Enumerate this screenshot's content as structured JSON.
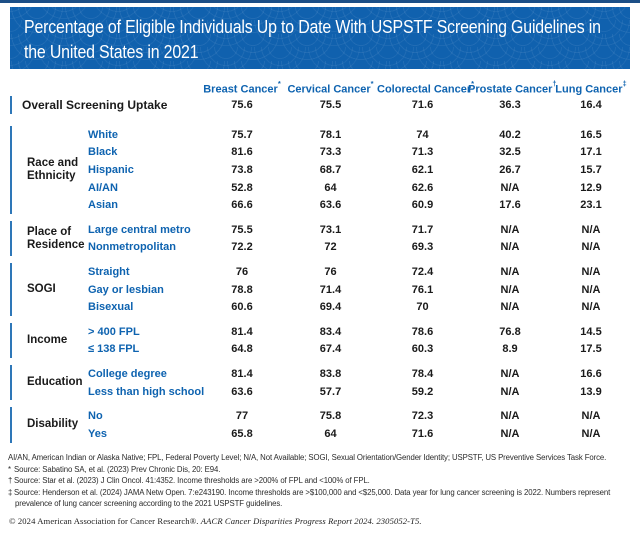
{
  "colors": {
    "banner_blue": "#1061AE",
    "accent_blue": "#0E63B0",
    "group_bar_blue": "#2E77B8",
    "top_rule_blue": "#1C4F87",
    "text_black": "#1A1A1A",
    "banner_text": "#FFFFFF"
  },
  "banner": {
    "lines": [
      "Percentage of Eligible Individuals Up to Date With USPSTF Screening Guidelines in",
      "the United States in 2021"
    ]
  },
  "chart_data": {
    "type": "table",
    "title": "Percentage of Eligible Individuals Up to Date With USPSTF Screening Guidelines in the United States in 2021",
    "unit": "percent up to date",
    "columns": [
      {
        "label": "Breast Cancer",
        "mark": "*"
      },
      {
        "label": "Cervical Cancer",
        "mark": "*"
      },
      {
        "label": "Colorectal Cancer",
        "mark": "*"
      },
      {
        "label": "Prostate Cancer",
        "mark": "†"
      },
      {
        "label": "Lung Cancer",
        "mark": "‡"
      }
    ],
    "overall": {
      "label": "Overall Screening Uptake",
      "values": [
        75.6,
        75.5,
        71.6,
        36.3,
        16.4
      ]
    },
    "groups": [
      {
        "label": "Race and Ethnicity",
        "rows": [
          {
            "label": "White",
            "values": [
              75.7,
              78.1,
              74,
              40.2,
              16.5
            ]
          },
          {
            "label": "Black",
            "values": [
              81.6,
              73.3,
              71.3,
              32.5,
              17.1
            ]
          },
          {
            "label": "Hispanic",
            "values": [
              73.8,
              68.7,
              62.1,
              26.7,
              15.7
            ]
          },
          {
            "label": "AI/AN",
            "values": [
              52.8,
              64,
              62.6,
              "N/A",
              12.9
            ]
          },
          {
            "label": "Asian",
            "values": [
              66.6,
              63.6,
              60.9,
              17.6,
              23.1
            ]
          }
        ]
      },
      {
        "label": "Place of Residence",
        "rows": [
          {
            "label": "Large central metro",
            "values": [
              75.5,
              73.1,
              71.7,
              "N/A",
              "N/A"
            ]
          },
          {
            "label": "Nonmetropolitan",
            "values": [
              72.2,
              72,
              69.3,
              "N/A",
              "N/A"
            ]
          }
        ]
      },
      {
        "label": "SOGI",
        "rows": [
          {
            "label": "Straight",
            "values": [
              76,
              76,
              72.4,
              "N/A",
              "N/A"
            ]
          },
          {
            "label": "Gay or lesbian",
            "values": [
              78.8,
              71.4,
              76.1,
              "N/A",
              "N/A"
            ]
          },
          {
            "label": "Bisexual",
            "values": [
              60.6,
              69.4,
              70,
              "N/A",
              "N/A"
            ]
          }
        ]
      },
      {
        "label": "Income",
        "rows": [
          {
            "label": "> 400 FPL",
            "values": [
              81.4,
              83.4,
              78.6,
              76.8,
              14.5
            ]
          },
          {
            "label": "≤ 138 FPL",
            "values": [
              64.8,
              67.4,
              60.3,
              8.9,
              17.5
            ]
          }
        ]
      },
      {
        "label": "Education",
        "rows": [
          {
            "label": "College degree",
            "values": [
              81.4,
              83.8,
              78.4,
              "N/A",
              16.6
            ]
          },
          {
            "label": "Less than high school",
            "values": [
              63.6,
              57.7,
              59.2,
              "N/A",
              13.9
            ]
          }
        ]
      },
      {
        "label": "Disability",
        "rows": [
          {
            "label": "No",
            "values": [
              77,
              75.8,
              72.3,
              "N/A",
              "N/A"
            ]
          },
          {
            "label": "Yes",
            "values": [
              65.8,
              64,
              71.6,
              "N/A",
              "N/A"
            ]
          }
        ]
      }
    ]
  },
  "footnotes": {
    "abbreviations": "AI/AN, American Indian or Alaska Native; FPL, Federal Poverty Level; N/A, Not Available; SOGI, Sexual Orientation/Gender Identity; USPSTF, US Preventive Services Task Force.",
    "sources": [
      {
        "mark": "*",
        "text": "Source: Sabatino SA, et al. (2023) Prev Chronic Dis, 20: E94."
      },
      {
        "mark": "†",
        "text": "Source: Star et al. (2023) J Clin Oncol. 41:4352. Income thresholds are >200% of FPL and <100% of FPL."
      },
      {
        "mark": "‡",
        "text": "Source: Henderson et al. (2024) JAMA Netw Open. 7:e243190. Income thresholds are >$100,000 and <$25,000. Data year for lung cancer screening is 2022. Numbers represent prevalence of lung cancer screening according to the 2021 USPSTF guidelines."
      }
    ]
  },
  "copyright": {
    "text": "© 2024 American Association for Cancer Research®.",
    "italic": "AACR Cancer Disparities Progress Report 2024. 2305052-T5."
  }
}
